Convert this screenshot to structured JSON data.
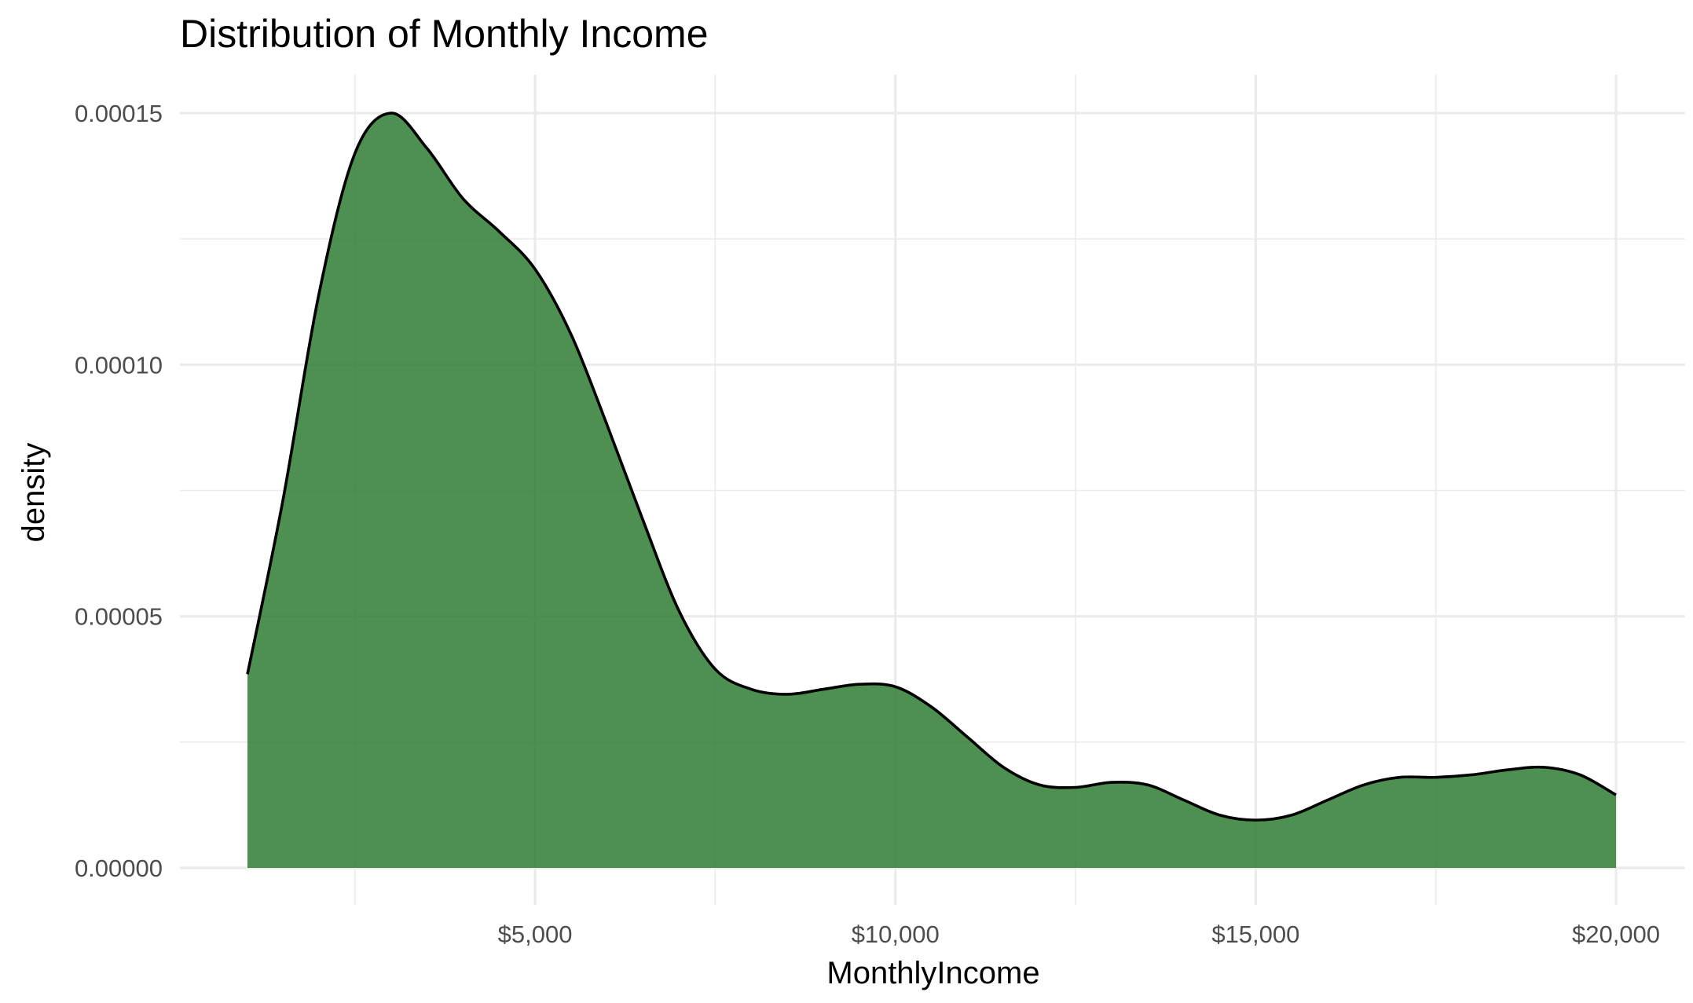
{
  "chart_data": {
    "type": "area",
    "title": "Distribution of Monthly Income",
    "xlabel": "MonthlyIncome",
    "ylabel": "density",
    "xlim": [
      1009,
      20000
    ],
    "ylim": [
      0,
      0.000158
    ],
    "x_ticks": [
      {
        "value": 5000,
        "label": "$5,000"
      },
      {
        "value": 10000,
        "label": "$10,000"
      },
      {
        "value": 15000,
        "label": "$15,000"
      },
      {
        "value": 20000,
        "label": "$20,000"
      }
    ],
    "x_minor_ticks": [
      2500,
      7500,
      12500,
      17500
    ],
    "y_ticks": [
      {
        "value": 0,
        "label": "0.00000"
      },
      {
        "value": 5e-05,
        "label": "0.00005"
      },
      {
        "value": 0.0001,
        "label": "0.00010"
      },
      {
        "value": 0.00015,
        "label": "0.00015"
      }
    ],
    "y_minor_ticks": [
      2.5e-05,
      7.5e-05,
      0.000125
    ],
    "grid": true,
    "fill_color": "#2e7d32",
    "fill_opacity": 0.85,
    "line_color": "#000000",
    "series": [
      {
        "x": [
          1009,
          1500,
          2000,
          2500,
          3000,
          3500,
          4000,
          4500,
          5000,
          5500,
          6000,
          6500,
          7000,
          7500,
          8000,
          8500,
          9000,
          9500,
          10000,
          10500,
          11000,
          11500,
          12000,
          12500,
          13000,
          13500,
          14000,
          14500,
          15000,
          15500,
          16000,
          16500,
          17000,
          17500,
          18000,
          18500,
          19000,
          19500,
          20000
        ],
        "y": [
          3.85e-05,
          7.3e-05,
          0.000114,
          0.000142,
          0.00015,
          0.000143,
          0.000133,
          0.0001265,
          0.000119,
          0.000106,
          8.8e-05,
          6.9e-05,
          5.1e-05,
          3.95e-05,
          3.55e-05,
          3.45e-05,
          3.55e-05,
          3.65e-05,
          3.6e-05,
          3.2e-05,
          2.6e-05,
          2e-05,
          1.65e-05,
          1.6e-05,
          1.7e-05,
          1.65e-05,
          1.35e-05,
          1.05e-05,
          9.5e-06,
          1.05e-05,
          1.35e-05,
          1.65e-05,
          1.8e-05,
          1.8e-05,
          1.85e-05,
          1.95e-05,
          2e-05,
          1.85e-05,
          1.45e-05
        ]
      }
    ]
  }
}
